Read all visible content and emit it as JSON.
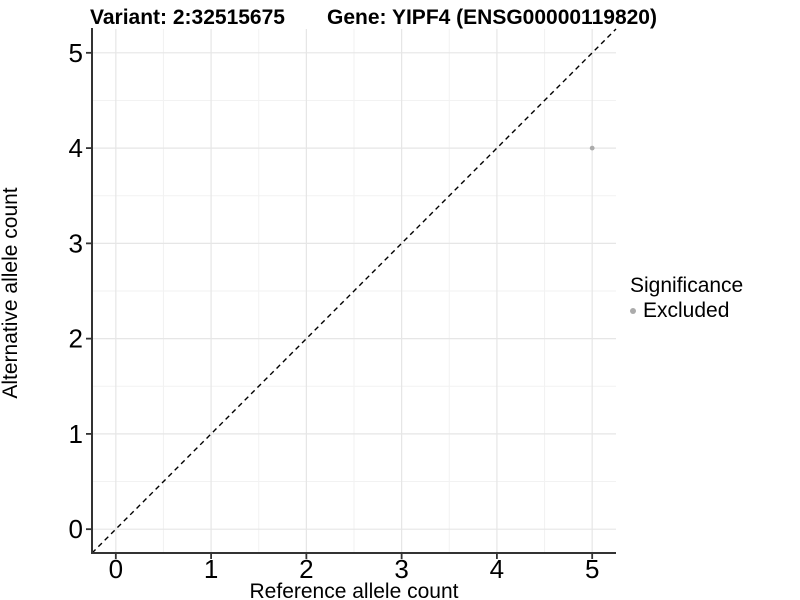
{
  "header": {
    "variant_title": "Variant: 2:32515675",
    "gene_title": "Gene: YIPF4 (ENSG00000119820)"
  },
  "colors": {
    "point": "#ababab",
    "legend_dot": "#ababab",
    "grid_major": "#e6e6e6",
    "grid_minor": "#f2f2f2",
    "axis_line": "#333333",
    "identity_line": "#000000",
    "text": "#000000",
    "background": "#ffffff"
  },
  "chart_data": {
    "type": "scatter",
    "title": "",
    "xlabel": "Reference allele count",
    "ylabel": "Alternative allele count",
    "xlim": [
      -0.25,
      5.25
    ],
    "ylim": [
      -0.25,
      5.25
    ],
    "xticks": [
      0,
      1,
      2,
      3,
      4,
      5
    ],
    "yticks": [
      0,
      1,
      2,
      3,
      4,
      5
    ],
    "x_minor_ticks": [
      0.5,
      1.5,
      2.5,
      3.5,
      4.5
    ],
    "y_minor_ticks": [
      0.5,
      1.5,
      2.5,
      3.5,
      4.5
    ],
    "grid": true,
    "points": [
      {
        "x": 5,
        "y": 4,
        "significance": "Excluded"
      }
    ],
    "identity_line": {
      "slope": 1,
      "intercept": 0,
      "style": "dashed"
    },
    "legend": {
      "title": "Significance",
      "position": "right",
      "items": [
        {
          "label": "Excluded",
          "color": "#ababab"
        }
      ]
    }
  }
}
